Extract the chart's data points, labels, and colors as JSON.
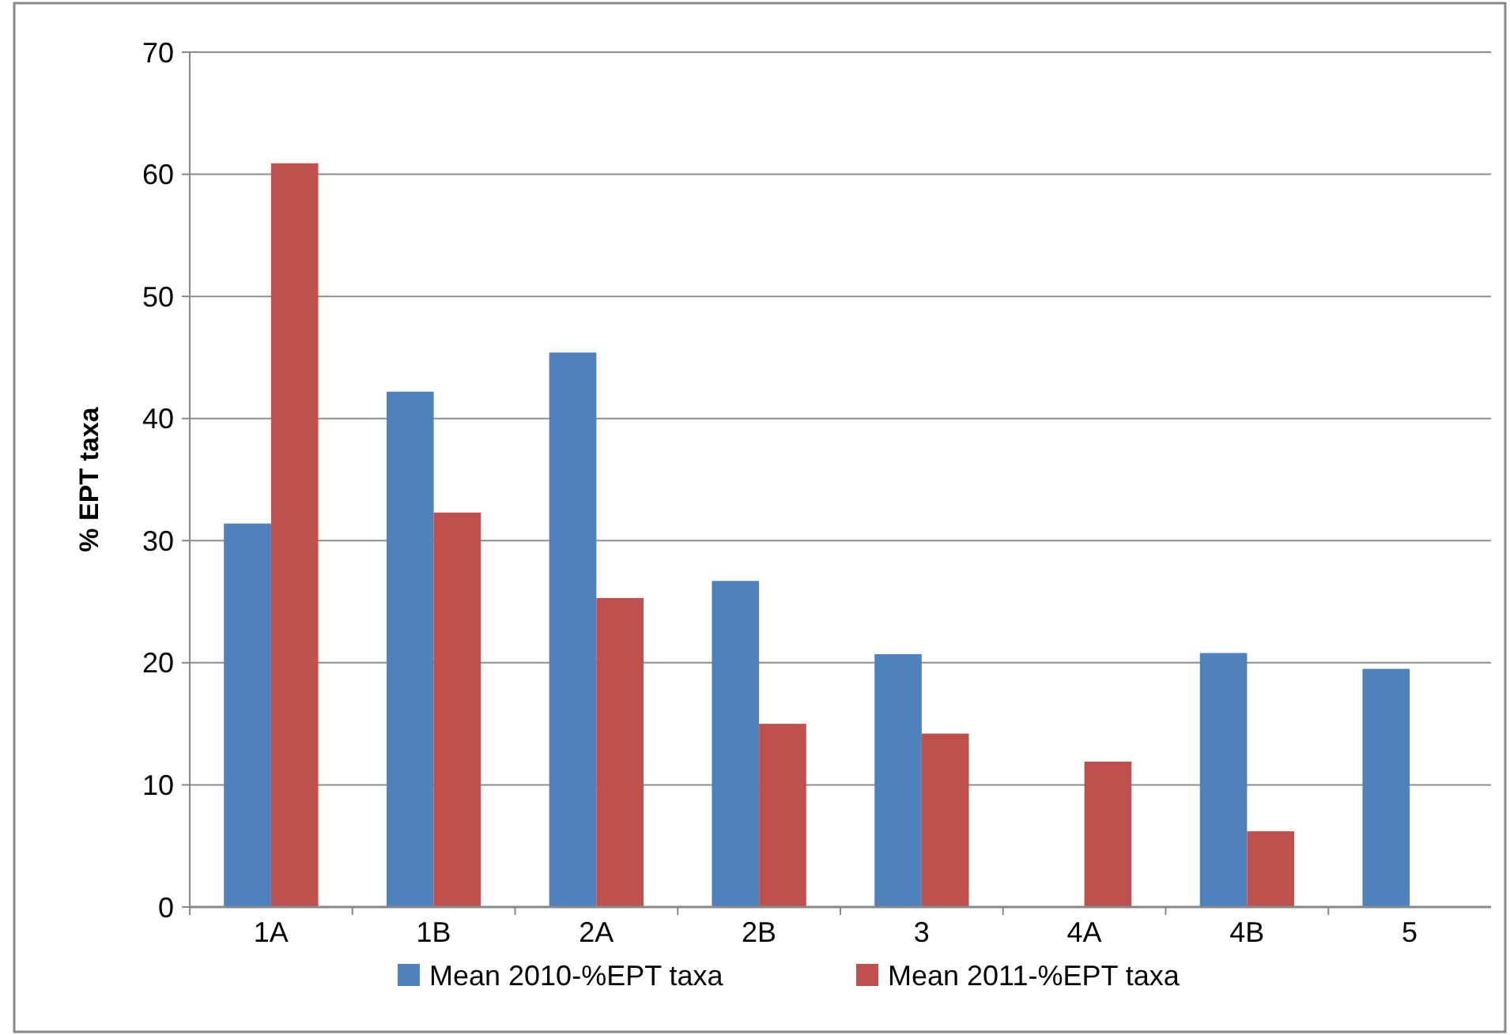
{
  "chart_data": {
    "type": "bar",
    "ylabel": "% EPT taxa",
    "categories": [
      "1A",
      "1B",
      "2A",
      "2B",
      "3",
      "4A",
      "4B",
      "5"
    ],
    "series": [
      {
        "name": "Mean 2010-%EPT taxa",
        "color": "#4f81bd",
        "values": [
          31.4,
          42.2,
          45.4,
          26.7,
          20.7,
          null,
          20.8,
          19.5
        ]
      },
      {
        "name": "Mean 2011-%EPT taxa",
        "color": "#c0504d",
        "values": [
          60.9,
          32.3,
          25.3,
          15.0,
          14.2,
          11.9,
          6.2,
          null
        ]
      }
    ],
    "ylim": [
      0,
      70
    ],
    "yticks": [
      0,
      10,
      20,
      30,
      40,
      50,
      60,
      70
    ],
    "grid": "y",
    "legend": "bottom"
  }
}
